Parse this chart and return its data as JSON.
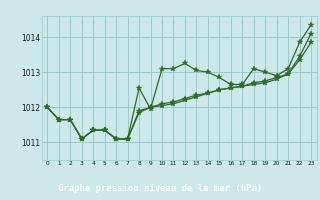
{
  "background_color": "#cce8e8",
  "grid_color": "#99cccc",
  "line_color": "#2d6a2d",
  "title": "Graphe pression niveau de la mer (hPa)",
  "title_bg": "#2d6a2d",
  "title_fg": "#ffffff",
  "xlim": [
    -0.5,
    23.5
  ],
  "ylim": [
    1010.5,
    1014.6
  ],
  "yticks": [
    1011,
    1012,
    1013,
    1014
  ],
  "xticks": [
    0,
    1,
    2,
    3,
    4,
    5,
    6,
    7,
    8,
    9,
    10,
    11,
    12,
    13,
    14,
    15,
    16,
    17,
    18,
    19,
    20,
    21,
    22,
    23
  ],
  "line1_x": [
    0,
    1,
    2,
    3,
    4,
    5,
    6,
    7,
    8,
    9,
    10,
    11,
    12,
    13,
    14,
    15,
    16,
    17,
    18,
    19,
    20,
    21,
    22,
    23
  ],
  "line1_y": [
    1012.0,
    1011.65,
    1011.65,
    1011.1,
    1011.35,
    1011.35,
    1011.1,
    1011.1,
    1012.55,
    1011.95,
    1013.1,
    1013.1,
    1013.25,
    1013.05,
    1013.0,
    1012.85,
    1012.65,
    1012.65,
    1013.1,
    1013.0,
    1012.9,
    1013.1,
    1013.85,
    1014.35
  ],
  "line2_x": [
    0,
    1,
    2,
    3,
    4,
    5,
    6,
    7,
    8,
    9,
    10,
    11,
    12,
    13,
    14,
    15,
    16,
    17,
    18,
    19,
    20,
    21,
    22,
    23
  ],
  "line2_y": [
    1012.0,
    1011.65,
    1011.65,
    1011.1,
    1011.35,
    1011.35,
    1011.1,
    1011.1,
    1011.85,
    1012.0,
    1012.1,
    1012.15,
    1012.25,
    1012.35,
    1012.4,
    1012.5,
    1012.55,
    1012.6,
    1012.7,
    1012.75,
    1012.85,
    1012.95,
    1013.35,
    1013.85
  ],
  "line3_x": [
    0,
    1,
    2,
    3,
    4,
    5,
    6,
    7,
    8,
    9,
    10,
    11,
    12,
    13,
    14,
    15,
    16,
    17,
    18,
    19,
    20,
    21,
    22,
    23
  ],
  "line3_y": [
    1012.0,
    1011.65,
    1011.65,
    1011.1,
    1011.35,
    1011.35,
    1011.1,
    1011.1,
    1011.9,
    1012.0,
    1012.05,
    1012.1,
    1012.2,
    1012.3,
    1012.4,
    1012.5,
    1012.55,
    1012.6,
    1012.65,
    1012.7,
    1012.8,
    1012.95,
    1013.45,
    1014.1
  ],
  "marker_size": 4,
  "line_width": 0.9
}
